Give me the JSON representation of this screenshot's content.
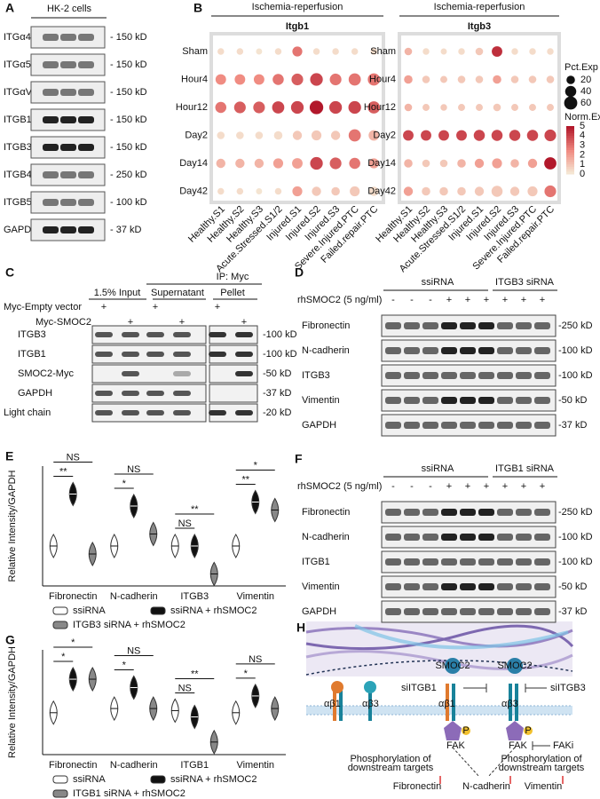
{
  "panels": {
    "a": {
      "letter": "A",
      "title": "HK-2 cells",
      "rows": [
        {
          "label": "ITGα4",
          "kd": "- 150 kD"
        },
        {
          "label": "ITGα5",
          "kd": "- 150 kD"
        },
        {
          "label": "ITGαV",
          "kd": "- 150 kD"
        },
        {
          "label": "ITGB1",
          "kd": "- 150 kD"
        },
        {
          "label": "ITGB3",
          "kd": "- 150 kD"
        },
        {
          "label": "ITGB4",
          "kd": "- 250 kD"
        },
        {
          "label": "ITGB5",
          "kd": "- 100 kD"
        },
        {
          "label": "GAPDH",
          "kd": "- 37 kD"
        }
      ]
    },
    "b": {
      "letter": "B",
      "rows": [
        "Sham",
        "Hour4",
        "Hour12",
        "Day2",
        "Day14",
        "Day42"
      ],
      "columns": [
        "Healthy.S1",
        "Healthy.S2",
        "Healthy.S3",
        "Acute.Stressed.S1/2",
        "Injured.S1",
        "Injured.S2",
        "Injured.S3",
        "Severe.Injured.PTC",
        "Failed.repair.PTC"
      ],
      "charts": [
        {
          "header": "Ischemia-reperfusion",
          "title": "Itgb1",
          "norm": [
            [
              0.5,
              0.5,
              0.3,
              0.5,
              3,
              0.5,
              0.5,
              0.5,
              0.5
            ],
            [
              2.5,
              2.5,
              2.5,
              3,
              3.5,
              4,
              3,
              3,
              3
            ],
            [
              3,
              3.5,
              3.5,
              4,
              4,
              5,
              4,
              4,
              3.5
            ],
            [
              0.5,
              0.5,
              0.5,
              0.5,
              1,
              1,
              1,
              3,
              1.5
            ],
            [
              1.5,
              1.5,
              1.5,
              2,
              2,
              4,
              3.5,
              3,
              2
            ],
            [
              0.5,
              0.5,
              0.3,
              0.5,
              2,
              1,
              1,
              1,
              0.5
            ]
          ],
          "pct": [
            [
              10,
              10,
              8,
              10,
              30,
              10,
              10,
              10,
              10
            ],
            [
              35,
              35,
              35,
              40,
              45,
              55,
              45,
              50,
              50
            ],
            [
              40,
              45,
              45,
              50,
              55,
              65,
              55,
              55,
              50
            ],
            [
              15,
              15,
              15,
              20,
              25,
              30,
              25,
              50,
              35
            ],
            [
              25,
              25,
              25,
              30,
              35,
              55,
              45,
              40,
              30
            ],
            [
              10,
              10,
              8,
              10,
              30,
              25,
              20,
              30,
              25
            ]
          ]
        },
        {
          "header": "Ischemia-reperfusion",
          "title": "Itgb3",
          "norm": [
            [
              1.5,
              0.5,
              0.5,
              0.5,
              1,
              4.5,
              0.5,
              0.5,
              0.5
            ],
            [
              2,
              1,
              1,
              1,
              1,
              2,
              1,
              1,
              1
            ],
            [
              1.5,
              1,
              1,
              1,
              1,
              1,
              1,
              1,
              1
            ],
            [
              4,
              4,
              4,
              4,
              4,
              4,
              4,
              4,
              4
            ],
            [
              1.5,
              1,
              1,
              1.5,
              2,
              2,
              1.5,
              2,
              5
            ],
            [
              2,
              1,
              1,
              1,
              1,
              1,
              1,
              1,
              3
            ]
          ],
          "pct": [
            [
              15,
              10,
              8,
              10,
              15,
              35,
              10,
              10,
              10
            ],
            [
              20,
              15,
              12,
              15,
              15,
              20,
              15,
              15,
              15
            ],
            [
              15,
              12,
              10,
              12,
              12,
              15,
              12,
              12,
              12
            ],
            [
              35,
              35,
              35,
              35,
              40,
              40,
              40,
              40,
              45
            ],
            [
              20,
              15,
              15,
              20,
              25,
              30,
              20,
              25,
              50
            ],
            [
              25,
              20,
              20,
              20,
              25,
              40,
              25,
              30,
              45
            ]
          ]
        }
      ],
      "size_title": "Pct.Exp",
      "sizes": [
        20,
        40,
        60
      ],
      "color_title": "Norm.Exp",
      "color_ticks": [
        5,
        4,
        3,
        2,
        1,
        0
      ]
    },
    "c": {
      "letter": "C",
      "ip": "IP: Myc",
      "columns": [
        "1.5% Input",
        "Supernatant",
        "Pellet"
      ],
      "conditions": [
        {
          "label": "Myc-Empty vector",
          "signs": [
            "+",
            "+",
            "+"
          ]
        },
        {
          "label": "Myc-SMOC2",
          "signs": [
            "+",
            "+",
            "+"
          ]
        }
      ],
      "rows": [
        {
          "label": "ITGB3",
          "kd": "-100 kD"
        },
        {
          "label": "ITGB1",
          "kd": "-100 kD"
        },
        {
          "label": "SMOC2-Myc",
          "kd": "-50 kD"
        },
        {
          "label": "GAPDH",
          "kd": "-37 kD"
        },
        {
          "label": "Light chain",
          "kd": "-20 kD"
        }
      ]
    },
    "d": {
      "letter": "D",
      "groups": [
        "ssiRNA",
        "ITGB3 siRNA"
      ],
      "treatment": "rhSMOC2 (5 ng/ml)",
      "signs": [
        "-",
        "-",
        "-",
        "+",
        "+",
        "+",
        "+",
        "+",
        "+"
      ],
      "rows": [
        {
          "label": "Fibronectin",
          "kd": "-250 kD"
        },
        {
          "label": "N-cadherin",
          "kd": "-100 kD"
        },
        {
          "label": "ITGB3",
          "kd": "-100 kD"
        },
        {
          "label": "Vimentin",
          "kd": "-50 kD"
        },
        {
          "label": "GAPDH",
          "kd": "-37 kD"
        }
      ]
    },
    "f": {
      "letter": "F",
      "groups": [
        "ssiRNA",
        "ITGB1 siRNA"
      ],
      "treatment": "rhSMOC2 (5 ng/ml)",
      "signs": [
        "-",
        "-",
        "-",
        "+",
        "+",
        "+",
        "+",
        "+",
        "+"
      ],
      "rows": [
        {
          "label": "Fibronectin",
          "kd": "-250 kD"
        },
        {
          "label": "N-cadherin",
          "kd": "-100 kD"
        },
        {
          "label": "ITGB1",
          "kd": "-100 kD"
        },
        {
          "label": "Vimentin",
          "kd": "-50 kD"
        },
        {
          "label": "GAPDH",
          "kd": "-37 kD"
        }
      ]
    },
    "e": {
      "letter": "E",
      "ylabel": "Relative Intensity/GAPDH",
      "ylim": [
        0,
        3
      ],
      "groups": [
        "Fibronectin",
        "N-cadherin",
        "ITGB3",
        "Vimentin"
      ],
      "values": [
        [
          1,
          2.3,
          0.8
        ],
        [
          1,
          2,
          1.3
        ],
        [
          1,
          1,
          0.3
        ],
        [
          1,
          2.1,
          1.9
        ]
      ],
      "sig": [
        [
          "**",
          "NS"
        ],
        [
          "*",
          "NS"
        ],
        [
          "NS",
          "**"
        ],
        [
          "**",
          "*"
        ]
      ],
      "legend": [
        "ssiRNA",
        "ssiRNA + rhSMOC2",
        "ITGB3 siRNA + rhSMOC2"
      ],
      "colors": [
        "#ffffff",
        "#111111",
        "#888888"
      ]
    },
    "g": {
      "letter": "G",
      "ylabel": "Relative Intensity/GAPDH",
      "ylim": [
        0,
        2.5
      ],
      "groups": [
        "Fibronectin",
        "N-cadherin",
        "ITGB1",
        "Vimentin"
      ],
      "values": [
        [
          1,
          1.8,
          1.8
        ],
        [
          1.1,
          1.6,
          1.1
        ],
        [
          1.05,
          0.9,
          0.3
        ],
        [
          1,
          1.4,
          1.1
        ]
      ],
      "sig": [
        [
          "*",
          "*"
        ],
        [
          "*",
          "NS"
        ],
        [
          "NS",
          "**"
        ],
        [
          "*",
          "NS"
        ]
      ],
      "legend": [
        "ssiRNA",
        "ssiRNA + rhSMOC2",
        "ITGB1 siRNA + rhSMOC2"
      ],
      "colors": [
        "#ffffff",
        "#111111",
        "#888888"
      ]
    },
    "h": {
      "letter": "H",
      "receptors": [
        "αβ1",
        "αβ3",
        "αβ1",
        "αβ3"
      ],
      "inhibitors": [
        "siITGB1",
        "siITGB3",
        "FAKi"
      ],
      "kinase": [
        "FAK",
        "FAK"
      ],
      "phospho": [
        "P",
        "P"
      ],
      "ligand": [
        "SMOC2",
        "SMOC2"
      ],
      "effect": [
        "Phosphorylation of",
        "downstream targets"
      ],
      "targets": [
        "Fibronectin",
        "N-cadherin",
        "Vimentin"
      ]
    }
  }
}
